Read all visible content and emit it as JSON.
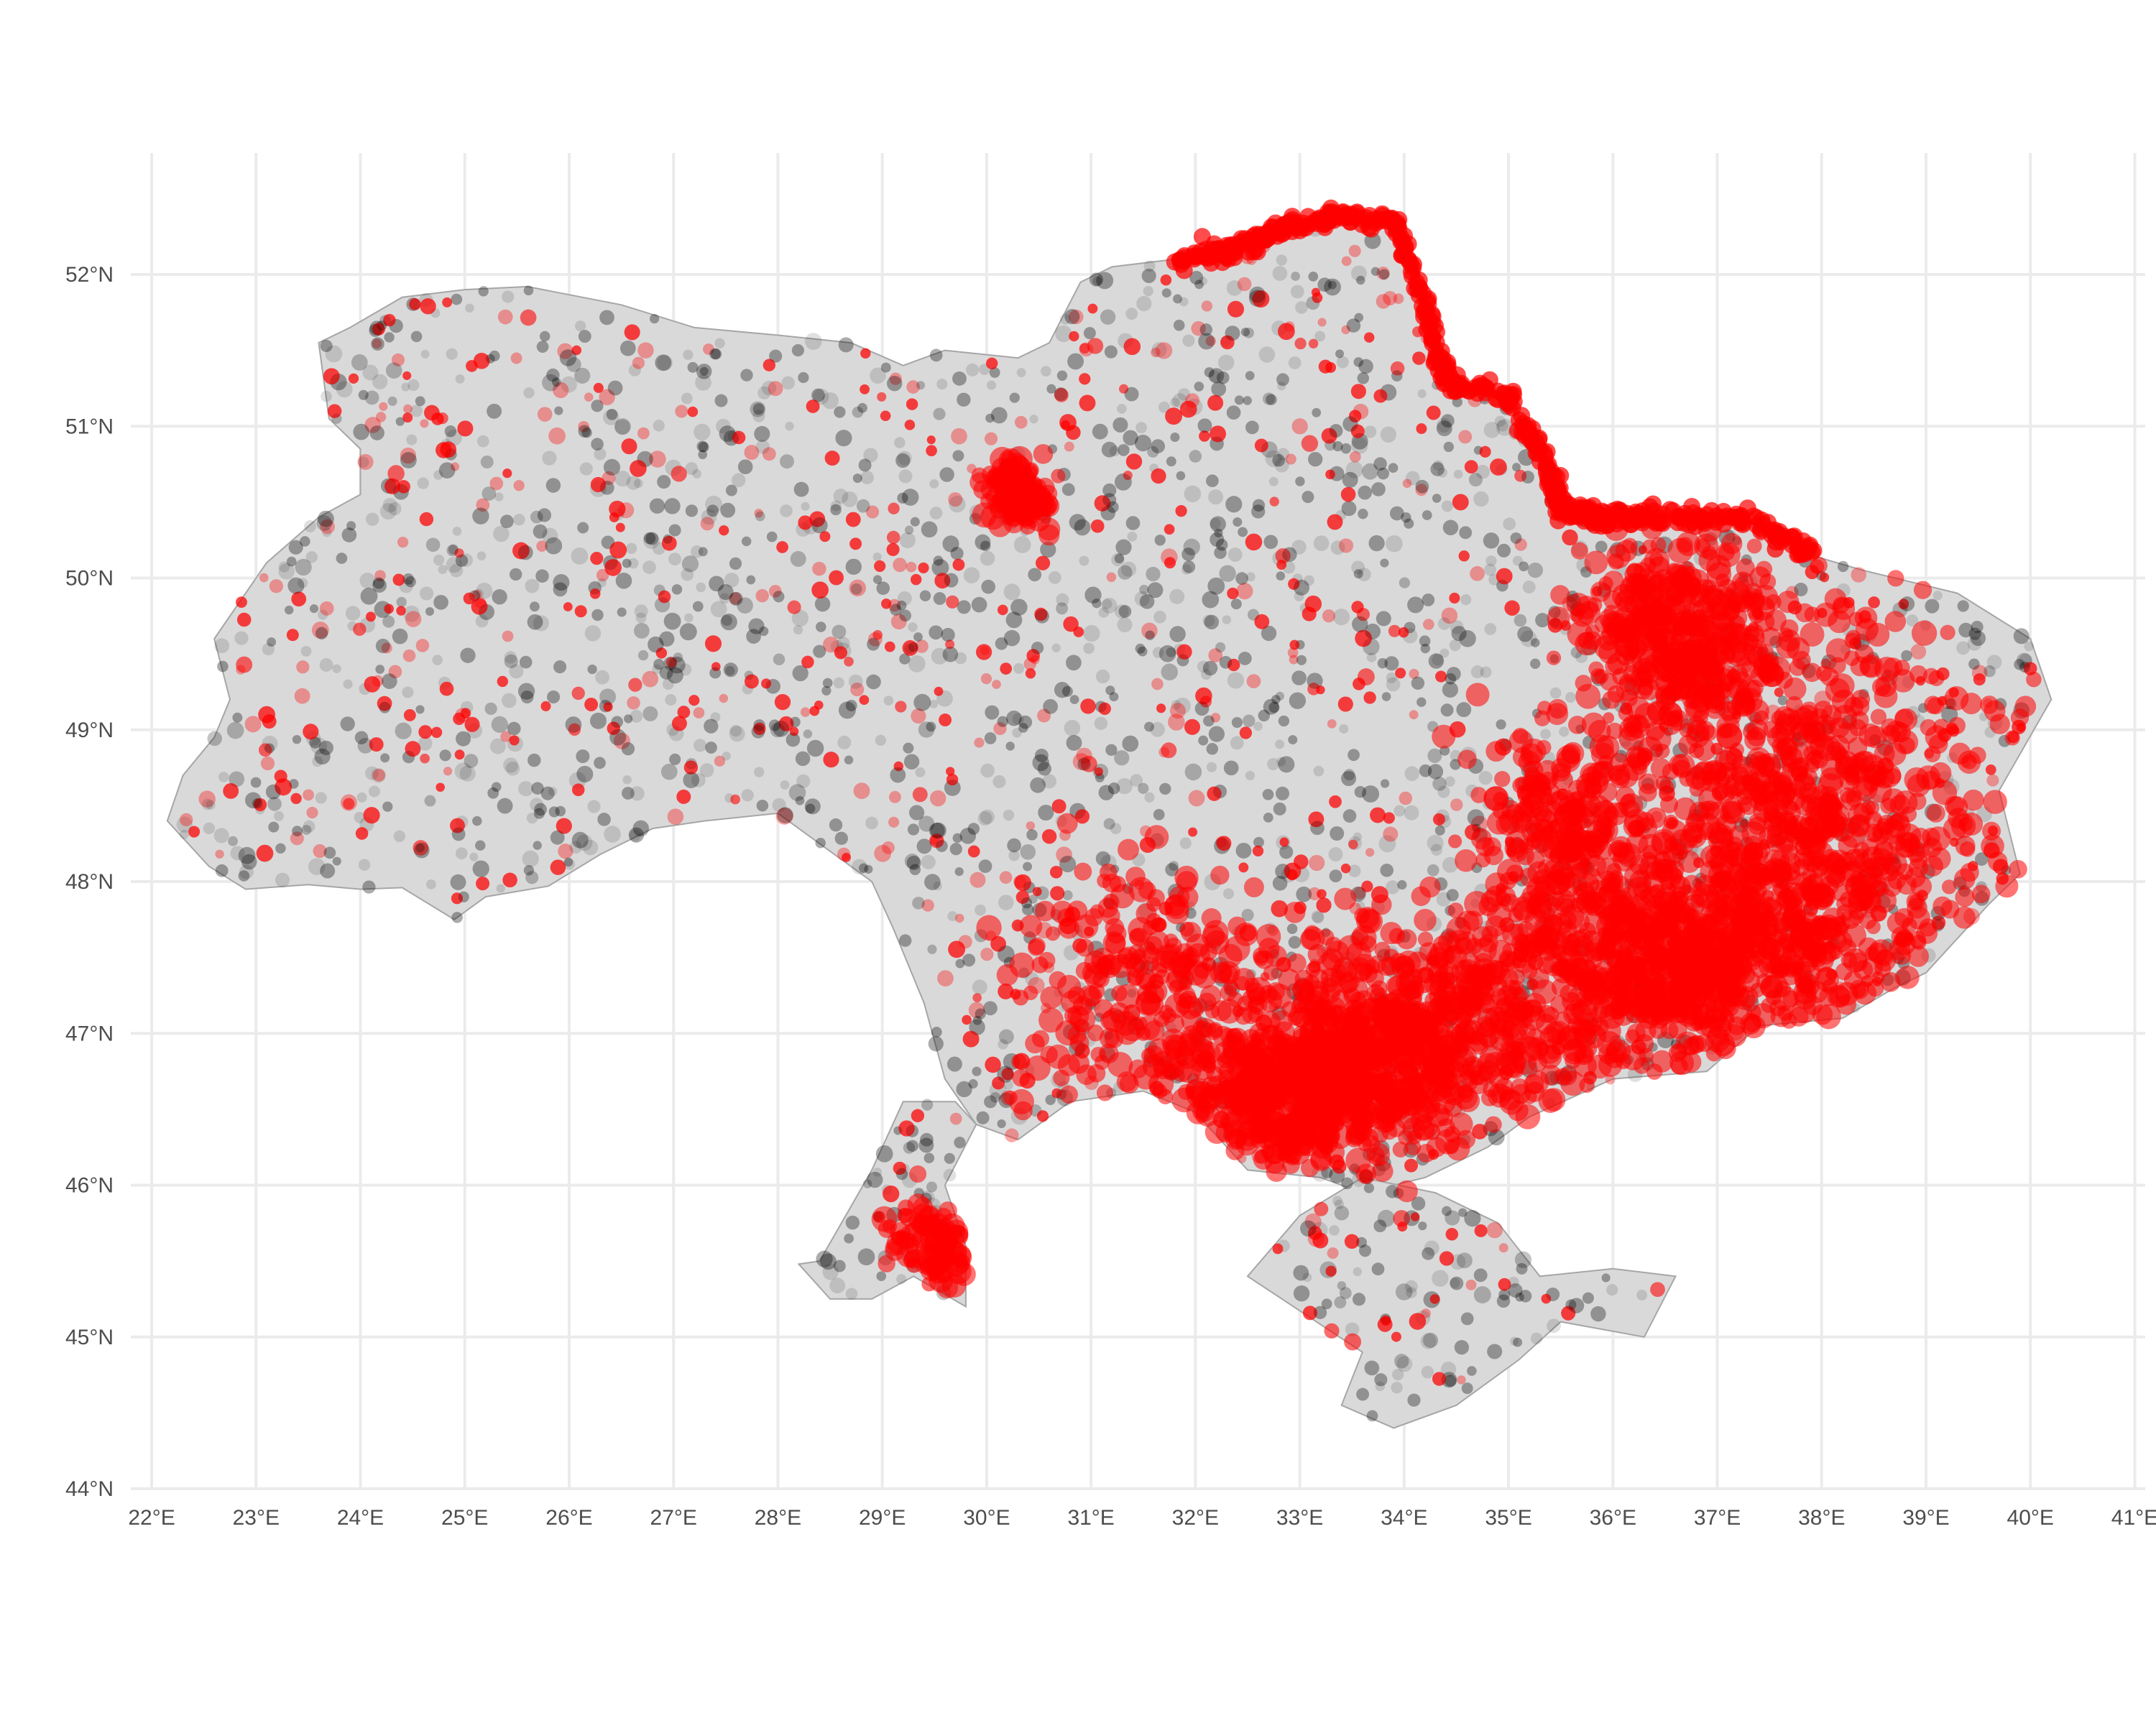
{
  "map": {
    "lon_range": [
      21.8,
      41.1
    ],
    "lat_range": [
      44.0,
      52.8
    ],
    "x_ticks": [
      "22°E",
      "23°E",
      "24°E",
      "25°E",
      "26°E",
      "27°E",
      "28°E",
      "29°E",
      "30°E",
      "31°E",
      "32°E",
      "33°E",
      "34°E",
      "35°E",
      "36°E",
      "37°E",
      "38°E",
      "39°E",
      "40°E",
      "41°E"
    ],
    "x_tick_values": [
      22,
      23,
      24,
      25,
      26,
      27,
      28,
      29,
      30,
      31,
      32,
      33,
      34,
      35,
      36,
      37,
      38,
      39,
      40,
      41
    ],
    "y_ticks": [
      "44°N",
      "45°N",
      "46°N",
      "47°N",
      "48°N",
      "49°N",
      "50°N",
      "51°N",
      "52°N"
    ],
    "y_tick_values": [
      44,
      45,
      46,
      47,
      48,
      49,
      50,
      51,
      52
    ],
    "grid": true,
    "legend": "none",
    "colors": {
      "land": "#d9d9d9",
      "border": "#a6a6a6",
      "grid": "#ebebeb",
      "event_red": "#ff0000",
      "event_black": "#000000",
      "tick_text": "#4d4d4d"
    },
    "mainland": [
      [
        22.15,
        48.4
      ],
      [
        22.55,
        48.1
      ],
      [
        22.9,
        47.95
      ],
      [
        23.5,
        47.98
      ],
      [
        24.0,
        47.95
      ],
      [
        24.4,
        47.96
      ],
      [
        24.9,
        47.75
      ],
      [
        25.2,
        47.9
      ],
      [
        25.8,
        47.97
      ],
      [
        26.3,
        48.18
      ],
      [
        26.8,
        48.35
      ],
      [
        27.3,
        48.4
      ],
      [
        28.0,
        48.45
      ],
      [
        28.4,
        48.25
      ],
      [
        28.9,
        48.0
      ],
      [
        29.1,
        47.7
      ],
      [
        29.4,
        47.2
      ],
      [
        29.6,
        46.7
      ],
      [
        29.9,
        46.4
      ],
      [
        30.3,
        46.3
      ],
      [
        30.8,
        46.55
      ],
      [
        31.5,
        46.62
      ],
      [
        32.0,
        46.48
      ],
      [
        32.5,
        46.1
      ],
      [
        33.2,
        46.05
      ],
      [
        33.6,
        45.95
      ],
      [
        34.2,
        46.05
      ],
      [
        34.8,
        46.25
      ],
      [
        35.2,
        46.45
      ],
      [
        36.0,
        46.7
      ],
      [
        36.9,
        46.75
      ],
      [
        37.4,
        47.05
      ],
      [
        38.2,
        47.1
      ],
      [
        38.7,
        47.3
      ],
      [
        39.0,
        47.4
      ],
      [
        39.6,
        47.85
      ],
      [
        39.9,
        48.05
      ],
      [
        39.7,
        48.6
      ],
      [
        40.2,
        49.2
      ],
      [
        40.0,
        49.6
      ],
      [
        39.3,
        49.9
      ],
      [
        38.4,
        50.05
      ],
      [
        37.9,
        50.15
      ],
      [
        37.3,
        50.4
      ],
      [
        36.5,
        50.4
      ],
      [
        35.9,
        50.4
      ],
      [
        35.5,
        50.45
      ],
      [
        35.4,
        50.7
      ],
      [
        35.0,
        51.2
      ],
      [
        34.4,
        51.3
      ],
      [
        34.2,
        51.8
      ],
      [
        33.9,
        52.35
      ],
      [
        33.3,
        52.38
      ],
      [
        32.8,
        52.3
      ],
      [
        32.3,
        52.15
      ],
      [
        31.8,
        52.1
      ],
      [
        31.2,
        52.05
      ],
      [
        30.9,
        51.95
      ],
      [
        30.6,
        51.55
      ],
      [
        30.3,
        51.45
      ],
      [
        29.6,
        51.5
      ],
      [
        29.2,
        51.4
      ],
      [
        28.7,
        51.55
      ],
      [
        28.0,
        51.6
      ],
      [
        27.2,
        51.65
      ],
      [
        26.5,
        51.8
      ],
      [
        25.6,
        51.92
      ],
      [
        25.0,
        51.9
      ],
      [
        24.4,
        51.85
      ],
      [
        23.9,
        51.65
      ],
      [
        23.6,
        51.55
      ],
      [
        23.7,
        51.05
      ],
      [
        24.0,
        50.85
      ],
      [
        24.0,
        50.55
      ],
      [
        23.6,
        50.4
      ],
      [
        23.1,
        50.1
      ],
      [
        22.6,
        49.6
      ],
      [
        22.75,
        49.2
      ],
      [
        22.6,
        48.95
      ],
      [
        22.3,
        48.7
      ]
    ],
    "crimea": [
      [
        32.5,
        45.4
      ],
      [
        33.0,
        45.8
      ],
      [
        33.6,
        46.05
      ],
      [
        34.3,
        45.95
      ],
      [
        34.9,
        45.75
      ],
      [
        35.3,
        45.4
      ],
      [
        36.0,
        45.45
      ],
      [
        36.6,
        45.4
      ],
      [
        36.3,
        45.0
      ],
      [
        35.5,
        45.1
      ],
      [
        35.1,
        44.85
      ],
      [
        34.5,
        44.55
      ],
      [
        33.9,
        44.4
      ],
      [
        33.4,
        44.55
      ],
      [
        33.6,
        44.9
      ]
    ],
    "odesa_south": [
      [
        28.2,
        45.48
      ],
      [
        28.5,
        45.25
      ],
      [
        28.9,
        45.25
      ],
      [
        29.3,
        45.4
      ],
      [
        29.8,
        45.2
      ],
      [
        29.8,
        45.6
      ],
      [
        29.6,
        46.0
      ],
      [
        29.9,
        46.4
      ],
      [
        29.7,
        46.55
      ],
      [
        29.2,
        46.55
      ],
      [
        28.9,
        46.1
      ],
      [
        28.4,
        45.5
      ]
    ],
    "event_clusters": [
      {
        "lon": 37.8,
        "lat": 48.3,
        "rx": 1.6,
        "ry": 1.4,
        "n": 900
      },
      {
        "lon": 36.5,
        "lat": 47.5,
        "rx": 1.5,
        "ry": 0.6,
        "n": 700
      },
      {
        "lon": 34.0,
        "lat": 47.0,
        "rx": 1.6,
        "ry": 0.6,
        "n": 700
      },
      {
        "lon": 33.0,
        "lat": 46.6,
        "rx": 1.0,
        "ry": 0.4,
        "n": 500
      },
      {
        "lon": 36.6,
        "lat": 49.6,
        "rx": 0.8,
        "ry": 0.6,
        "n": 400
      },
      {
        "lon": 30.3,
        "lat": 50.55,
        "rx": 0.3,
        "ry": 0.2,
        "n": 120
      },
      {
        "lon": 31.5,
        "lat": 47.3,
        "rx": 1.2,
        "ry": 0.8,
        "n": 250
      },
      {
        "lon": 29.5,
        "lat": 45.6,
        "rx": 0.4,
        "ry": 0.3,
        "n": 100
      },
      {
        "lon": 35.5,
        "lat": 48.3,
        "rx": 0.7,
        "ry": 0.6,
        "n": 200
      }
    ],
    "border_strip": [
      [
        31.8,
        52.1
      ],
      [
        32.3,
        52.15
      ],
      [
        32.8,
        52.3
      ],
      [
        33.3,
        52.38
      ],
      [
        33.9,
        52.35
      ],
      [
        34.2,
        51.8
      ],
      [
        34.4,
        51.3
      ],
      [
        35.0,
        51.2
      ],
      [
        35.4,
        50.7
      ],
      [
        35.5,
        50.45
      ],
      [
        35.9,
        50.4
      ],
      [
        36.5,
        50.4
      ],
      [
        37.3,
        50.4
      ],
      [
        37.9,
        50.15
      ]
    ],
    "background_events": 6000,
    "red_fraction": 0.28
  }
}
